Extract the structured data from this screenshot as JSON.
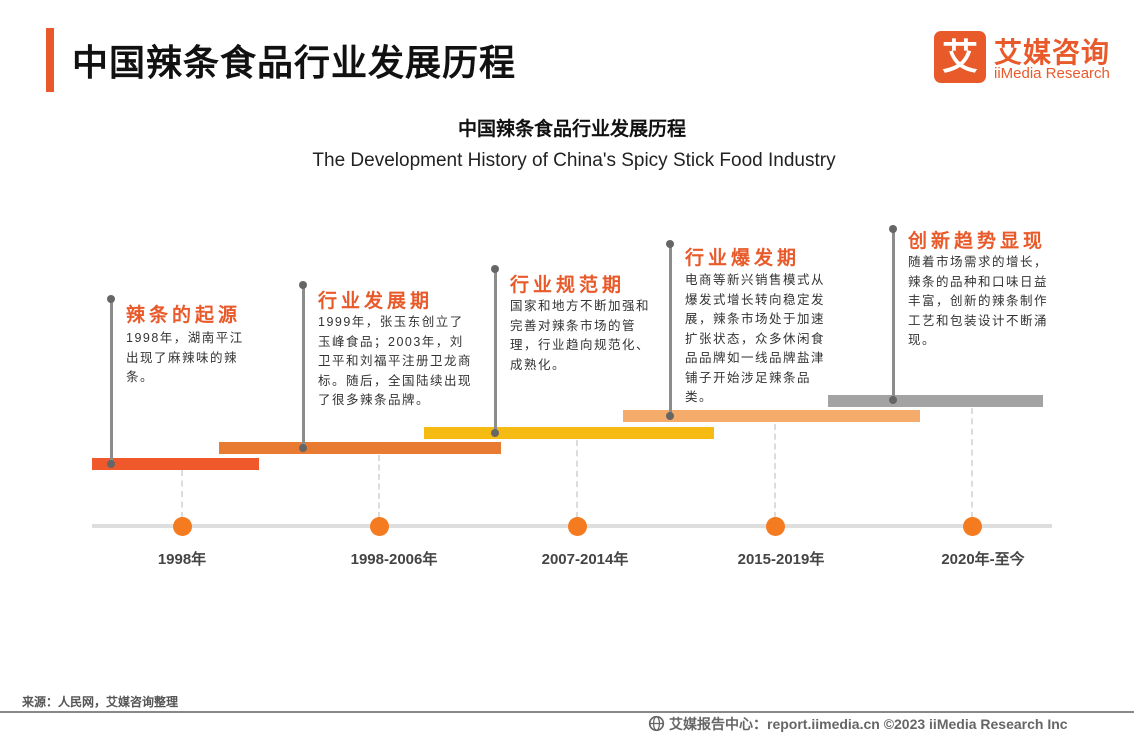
{
  "header": {
    "title": "中国辣条食品行业发展历程",
    "logo_mark": "艾",
    "logo_cn": "艾媒咨询",
    "logo_en": "iiMedia Research"
  },
  "diagram": {
    "title_cn": "中国辣条食品行业发展历程",
    "title_en": "The Development History of China's Spicy Stick Food Industry",
    "phases": [
      {
        "title": "辣条的起源",
        "period": "1998年",
        "color": "#f0592b",
        "text": "1998年，湖南平江出现了麻辣味的辣条。"
      },
      {
        "title": "行业发展期",
        "period": "1998-2006年",
        "color": "#e97a31",
        "text": "1999年，张玉东创立了玉峰食品；2003年，刘卫平和刘福平注册卫龙商标。随后，全国陆续出现了很多辣条品牌。"
      },
      {
        "title": "行业规范期",
        "period": "2007-2014年",
        "color": "#f5bb12",
        "text": "国家和地方不断加强和完善对辣条市场的管理，行业趋向规范化、成熟化。"
      },
      {
        "title": "行业爆发期",
        "period": "2015-2019年",
        "color": "#f5ac6a",
        "text": "电商等新兴销售模式从爆发式增长转向稳定发展，辣条市场处于加速扩张状态，众多休闲食品品牌如一线品牌盐津铺子开始涉足辣条品类。"
      },
      {
        "title": "创新趋势显现",
        "period": "2020年-至今",
        "color": "#a3a3a3",
        "text": "随着市场需求的增长，辣条的品种和口味日益丰富，创新的辣条制作工艺和包装设计不断涌现。"
      }
    ]
  },
  "footer": {
    "source": "来源：人民网，艾媒咨询整理",
    "icon": "globe-icon",
    "text": "艾媒报告中心：report.iimedia.cn  ©2023  iiMedia Research  Inc"
  }
}
